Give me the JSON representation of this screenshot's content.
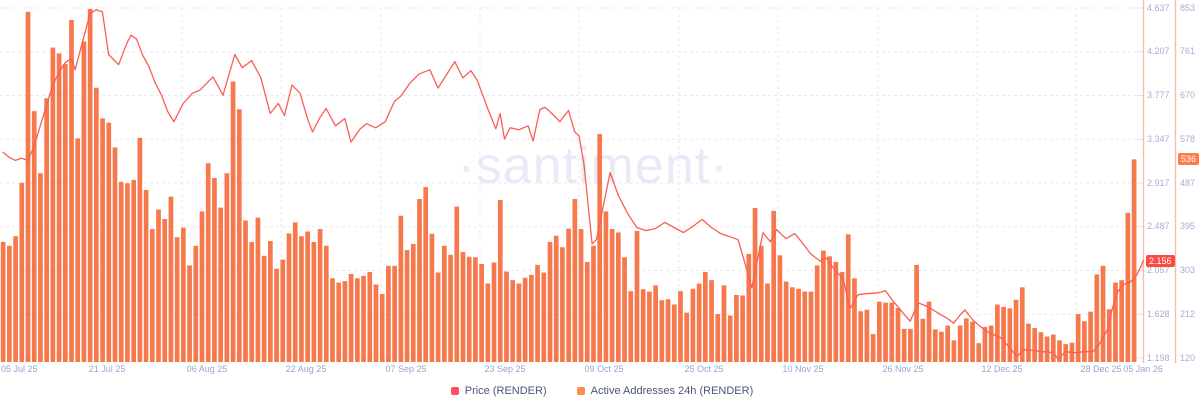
{
  "watermark": "·santiment·",
  "legend": {
    "items": [
      {
        "label": "Price (RENDER)",
        "color": "#fb5358",
        "icon": "square-swatch"
      },
      {
        "label": "Active Addresses 24h (RENDER)",
        "color": "#ff8a4d",
        "icon": "square-swatch"
      }
    ]
  },
  "axes": {
    "price": {
      "ticks": [
        "4.637",
        "4.207",
        "3.777",
        "3.347",
        "2.917",
        "2.487",
        "2.057",
        "1.628",
        "1.198"
      ],
      "current": "2.156",
      "badge_color": "#fa4b43",
      "axis_line_color": "#f8bda9",
      "min": 1.198,
      "max": 4.637
    },
    "addresses": {
      "ticks": [
        "853",
        "761",
        "670",
        "578",
        "487",
        "395",
        "303",
        "212",
        "120"
      ],
      "current": "536",
      "badge_color": "#ff7b47",
      "axis_line_color": "#f8bda9",
      "min": 120,
      "max": 853
    },
    "x": {
      "labels": [
        "05 Jul 25",
        "21 Jul 25",
        "06 Aug 25",
        "22 Aug 25",
        "07 Sep 25",
        "23 Sep 25",
        "09 Oct 25",
        "25 Oct 25",
        "10 Nov 25",
        "26 Nov 25",
        "12 Dec 25",
        "28 Dec 25",
        "05 Jan 26"
      ]
    }
  },
  "colors": {
    "bar": "#f5794d",
    "line": "#fb5d55",
    "grid": "#e8eaf2",
    "tick_dash": "#dfe3ef",
    "background": "#ffffff"
  },
  "chart_data": {
    "type": "bar",
    "title": "",
    "xlabel": "",
    "ylabel": "",
    "x_tick_labels": [
      "05 Jul 25",
      "21 Jul 25",
      "06 Aug 25",
      "22 Aug 25",
      "07 Sep 25",
      "23 Sep 25",
      "09 Oct 25",
      "25 Oct 25",
      "10 Nov 25",
      "26 Nov 25",
      "12 Dec 25",
      "28 Dec 25",
      "05 Jan 26"
    ],
    "days_span": 184,
    "price_axis": {
      "min": 1.198,
      "max": 4.637,
      "ticks": [
        4.637,
        4.207,
        3.777,
        3.347,
        2.917,
        2.487,
        2.057,
        1.628,
        1.198
      ],
      "current": 2.156
    },
    "addresses_axis": {
      "min": 120,
      "max": 853,
      "ticks": [
        853,
        761,
        670,
        578,
        487,
        395,
        303,
        212,
        120
      ],
      "current": 536
    },
    "legend_position": "bottom-center",
    "grid": "dashed",
    "series": [
      {
        "name": "Active Addresses 24h (RENDER)",
        "type": "bar",
        "axis": "addresses",
        "color": "#f5794d",
        "values": [
          363,
          355,
          375,
          487,
          845,
          637,
          507,
          664,
          770,
          758,
          736,
          828,
          580,
          783,
          851,
          686,
          622,
          613,
          561,
          489,
          486,
          493,
          581,
          472,
          390,
          431,
          411,
          458,
          373,
          393,
          314,
          355,
          427,
          528,
          497,
          435,
          507,
          699,
          641,
          408,
          363,
          414,
          334,
          365,
          307,
          326,
          381,
          404,
          375,
          385,
          363,
          390,
          355,
          287,
          278,
          281,
          296,
          287,
          292,
          300,
          274,
          254,
          313,
          313,
          418,
          346,
          359,
          453,
          478,
          380,
          299,
          355,
          336,
          437,
          342,
          332,
          331,
          317,
          276,
          320,
          451,
          301,
          283,
          276,
          288,
          294,
          315,
          299,
          363,
          376,
          352,
          391,
          453,
          390,
          321,
          355,
          589,
          427,
          390,
          383,
          331,
          260,
          386,
          264,
          259,
          272,
          241,
          243,
          232,
          260,
          215,
          265,
          276,
          300,
          283,
          212,
          272,
          209,
          252,
          251,
          338,
          434,
          355,
          276,
          428,
          335,
          280,
          268,
          265,
          259,
          259,
          314,
          345,
          333,
          321,
          300,
          379,
          287,
          218,
          221,
          170,
          238,
          236,
          236,
          225,
          181,
          181,
          315,
          202,
          238,
          180,
          175,
          188,
          157,
          188,
          203,
          196,
          151,
          185,
          188,
          232,
          227,
          224,
          242,
          268,
          192,
          183,
          174,
          165,
          169,
          157,
          149,
          152,
          212,
          197,
          217,
          295,
          313,
          222,
          278,
          283,
          424,
          536
        ]
      },
      {
        "name": "Price (RENDER)",
        "type": "line",
        "axis": "price",
        "color": "#fb5d55",
        "points": [
          [
            0,
            3.22
          ],
          [
            1,
            3.17
          ],
          [
            2,
            3.14
          ],
          [
            3,
            3.16
          ],
          [
            4,
            3.14
          ],
          [
            5,
            3.28
          ],
          [
            6,
            3.48
          ],
          [
            7,
            3.68
          ],
          [
            8,
            3.88
          ],
          [
            9,
            4.0
          ],
          [
            10,
            4.1
          ],
          [
            11,
            4.14
          ],
          [
            11.6,
            4.03
          ],
          [
            13,
            4.35
          ],
          [
            14,
            4.58
          ],
          [
            15,
            4.62
          ],
          [
            16,
            4.6
          ],
          [
            17,
            4.18
          ],
          [
            18.6,
            4.08
          ],
          [
            20,
            4.3
          ],
          [
            20.6,
            4.37
          ],
          [
            21.5,
            4.33
          ],
          [
            22.5,
            4.17
          ],
          [
            23.5,
            4.06
          ],
          [
            24.5,
            3.9
          ],
          [
            25.5,
            3.78
          ],
          [
            26.5,
            3.62
          ],
          [
            27.5,
            3.52
          ],
          [
            29,
            3.7
          ],
          [
            30.5,
            3.8
          ],
          [
            31.7,
            3.83
          ],
          [
            33.8,
            3.96
          ],
          [
            35.4,
            3.78
          ],
          [
            37.3,
            4.18
          ],
          [
            38.5,
            4.05
          ],
          [
            40,
            4.12
          ],
          [
            41.5,
            3.95
          ],
          [
            43,
            3.6
          ],
          [
            44.3,
            3.7
          ],
          [
            45.3,
            3.58
          ],
          [
            46.5,
            3.88
          ],
          [
            47.8,
            3.8
          ],
          [
            49,
            3.55
          ],
          [
            49.8,
            3.42
          ],
          [
            51,
            3.56
          ],
          [
            52,
            3.65
          ],
          [
            53.5,
            3.48
          ],
          [
            55,
            3.55
          ],
          [
            56,
            3.32
          ],
          [
            57.5,
            3.45
          ],
          [
            58.5,
            3.5
          ],
          [
            60,
            3.46
          ],
          [
            61.5,
            3.52
          ],
          [
            63,
            3.72
          ],
          [
            64,
            3.77
          ],
          [
            65.5,
            3.9
          ],
          [
            67,
            3.99
          ],
          [
            68.7,
            4.03
          ],
          [
            70,
            3.85
          ],
          [
            72.7,
            4.11
          ],
          [
            74,
            3.95
          ],
          [
            75.3,
            4.02
          ],
          [
            76.3,
            3.93
          ],
          [
            78,
            3.65
          ],
          [
            79.3,
            3.45
          ],
          [
            80,
            3.6
          ],
          [
            80.7,
            3.35
          ],
          [
            81.6,
            3.46
          ],
          [
            83,
            3.44
          ],
          [
            84.5,
            3.48
          ],
          [
            85.3,
            3.33
          ],
          [
            86.4,
            3.64
          ],
          [
            87.2,
            3.66
          ],
          [
            88,
            3.62
          ],
          [
            89,
            3.56
          ],
          [
            89.6,
            3.52
          ],
          [
            91,
            3.63
          ],
          [
            92,
            3.42
          ],
          [
            92.7,
            3.38
          ],
          [
            93.5,
            3.1
          ],
          [
            94.8,
            2.32
          ],
          [
            95.5,
            2.36
          ],
          [
            96.3,
            2.6
          ],
          [
            97.7,
            3.02
          ],
          [
            99,
            2.8
          ],
          [
            100.5,
            2.62
          ],
          [
            102,
            2.48
          ],
          [
            103.5,
            2.45
          ],
          [
            105,
            2.47
          ],
          [
            106.5,
            2.53
          ],
          [
            108,
            2.48
          ],
          [
            109.5,
            2.43
          ],
          [
            111,
            2.49
          ],
          [
            112.5,
            2.56
          ],
          [
            114,
            2.48
          ],
          [
            115.5,
            2.42
          ],
          [
            117,
            2.39
          ],
          [
            118.3,
            2.36
          ],
          [
            119.3,
            2.15
          ],
          [
            120.5,
            1.89
          ],
          [
            122.3,
            2.43
          ],
          [
            123.5,
            2.34
          ],
          [
            124.5,
            2.46
          ],
          [
            126,
            2.37
          ],
          [
            127.4,
            2.42
          ],
          [
            128.5,
            2.34
          ],
          [
            130,
            2.22
          ],
          [
            131.5,
            2.15
          ],
          [
            132.5,
            2.18
          ],
          [
            134,
            2.05
          ],
          [
            135.2,
            1.98
          ],
          [
            136.3,
            1.68
          ],
          [
            137.6,
            1.82
          ],
          [
            139,
            1.83
          ],
          [
            141,
            1.84
          ],
          [
            142,
            1.86
          ],
          [
            143.2,
            1.76
          ],
          [
            145.4,
            1.6
          ],
          [
            146,
            1.56
          ],
          [
            147.3,
            1.74
          ],
          [
            148.5,
            1.71
          ],
          [
            149.7,
            1.67
          ],
          [
            151,
            1.62
          ],
          [
            151.9,
            1.59
          ],
          [
            153,
            1.54
          ],
          [
            154,
            1.62
          ],
          [
            154.8,
            1.67
          ],
          [
            156.1,
            1.57
          ],
          [
            157.2,
            1.51
          ],
          [
            158.3,
            1.46
          ],
          [
            159.3,
            1.43
          ],
          [
            160.5,
            1.4
          ],
          [
            162,
            1.3
          ],
          [
            163.2,
            1.21
          ],
          [
            164.2,
            1.28
          ],
          [
            166,
            1.27
          ],
          [
            167.5,
            1.26
          ],
          [
            169,
            1.25
          ],
          [
            169.8,
            1.19
          ],
          [
            171,
            1.26
          ],
          [
            172.5,
            1.25
          ],
          [
            174,
            1.26
          ],
          [
            175.4,
            1.26
          ],
          [
            176.5,
            1.34
          ],
          [
            177.7,
            1.47
          ],
          [
            178.6,
            1.7
          ],
          [
            179.4,
            1.85
          ],
          [
            180.3,
            1.92
          ],
          [
            181.3,
            1.94
          ],
          [
            182.2,
            1.99
          ],
          [
            183,
            2.08
          ],
          [
            183.5,
            2.156
          ]
        ]
      }
    ]
  }
}
